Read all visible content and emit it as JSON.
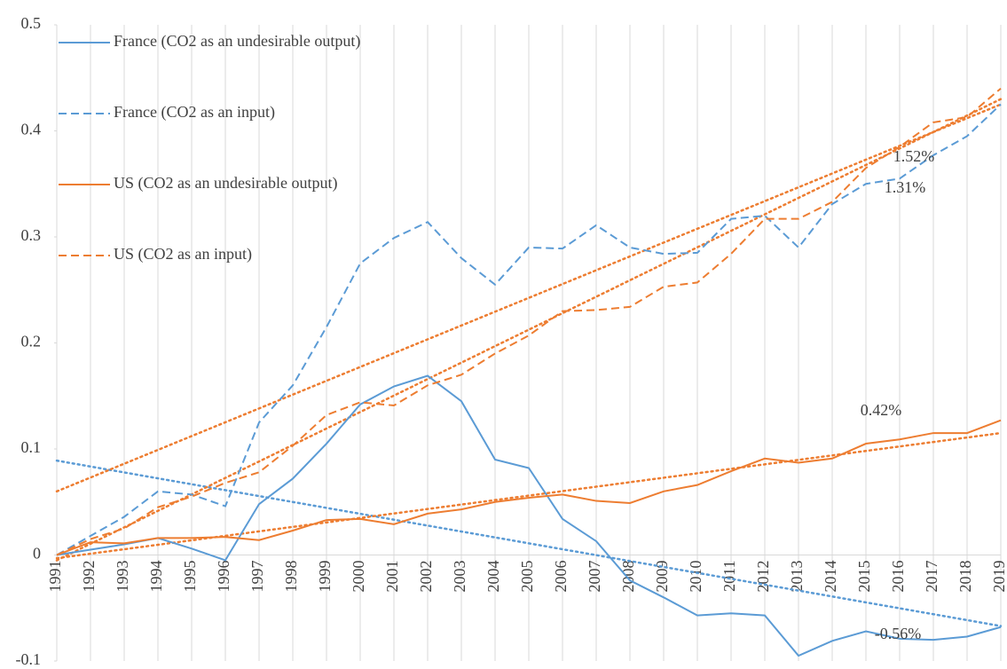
{
  "chart_data": {
    "type": "line",
    "categories": [
      "1991",
      "1992",
      "1993",
      "1994",
      "1995",
      "1996",
      "1997",
      "1998",
      "1999",
      "2000",
      "2001",
      "2002",
      "2003",
      "2004",
      "2005",
      "2006",
      "2007",
      "2008",
      "2009",
      "2010",
      "2011",
      "2012",
      "2013",
      "2014",
      "2015",
      "2016",
      "2017",
      "2018",
      "2019"
    ],
    "series": [
      {
        "name": "France (CO2 as an undesirable output)",
        "color": "#5b9bd5",
        "style": "solid",
        "values": [
          0,
          0.005,
          0.01,
          0.016,
          0.006,
          -0.005,
          0.048,
          0.072,
          0.105,
          0.142,
          0.159,
          0.169,
          0.145,
          0.09,
          0.082,
          0.034,
          0.013,
          -0.024,
          -0.04,
          -0.057,
          -0.055,
          -0.057,
          -0.095,
          -0.081,
          -0.072,
          -0.079,
          -0.08,
          -0.077,
          -0.068
        ]
      },
      {
        "name": "France (CO2 as an input)",
        "color": "#5b9bd5",
        "style": "dashed",
        "values": [
          0,
          0.018,
          0.036,
          0.06,
          0.057,
          0.046,
          0.125,
          0.16,
          0.215,
          0.275,
          0.299,
          0.314,
          0.28,
          0.255,
          0.29,
          0.289,
          0.311,
          0.29,
          0.284,
          0.285,
          0.317,
          0.32,
          0.29,
          0.331,
          0.35,
          0.355,
          0.377,
          0.395,
          0.425
        ]
      },
      {
        "name": "US (CO2 as an undesirable output)",
        "color": "#ed7d31",
        "style": "solid",
        "values": [
          0,
          0.012,
          0.011,
          0.016,
          0.016,
          0.017,
          0.014,
          0.023,
          0.033,
          0.034,
          0.029,
          0.039,
          0.043,
          0.05,
          0.054,
          0.057,
          0.051,
          0.049,
          0.06,
          0.066,
          0.079,
          0.091,
          0.087,
          0.091,
          0.105,
          0.109,
          0.115,
          0.115,
          0.127
        ]
      },
      {
        "name": "US (CO2 as an input)",
        "color": "#ed7d31",
        "style": "dashed",
        "values": [
          0,
          0.015,
          0.025,
          0.045,
          0.055,
          0.068,
          0.078,
          0.103,
          0.132,
          0.144,
          0.141,
          0.16,
          0.17,
          0.19,
          0.207,
          0.23,
          0.231,
          0.234,
          0.253,
          0.257,
          0.284,
          0.317,
          0.317,
          0.333,
          0.365,
          0.385,
          0.408,
          0.413,
          0.44
        ]
      }
    ],
    "trendlines": [
      {
        "color": "#5b9bd5",
        "values": [
          0.089,
          -0.067
        ]
      },
      {
        "color": "#ed7d31",
        "values": [
          0.06,
          0.425
        ]
      },
      {
        "color": "#ed7d31",
        "values": [
          -0.005,
          0.43
        ]
      },
      {
        "color": "#ed7d31",
        "values": [
          -0.003,
          0.115
        ]
      }
    ],
    "annotations": [
      "1.52%",
      "1.31%",
      "0.42%",
      "-0.56%"
    ],
    "ylim": [
      -0.1,
      0.5
    ],
    "yticks": [
      -0.1,
      0,
      0.1,
      0.2,
      0.3,
      0.4,
      0.5
    ],
    "grid": "vertical",
    "legend": "upper left"
  }
}
